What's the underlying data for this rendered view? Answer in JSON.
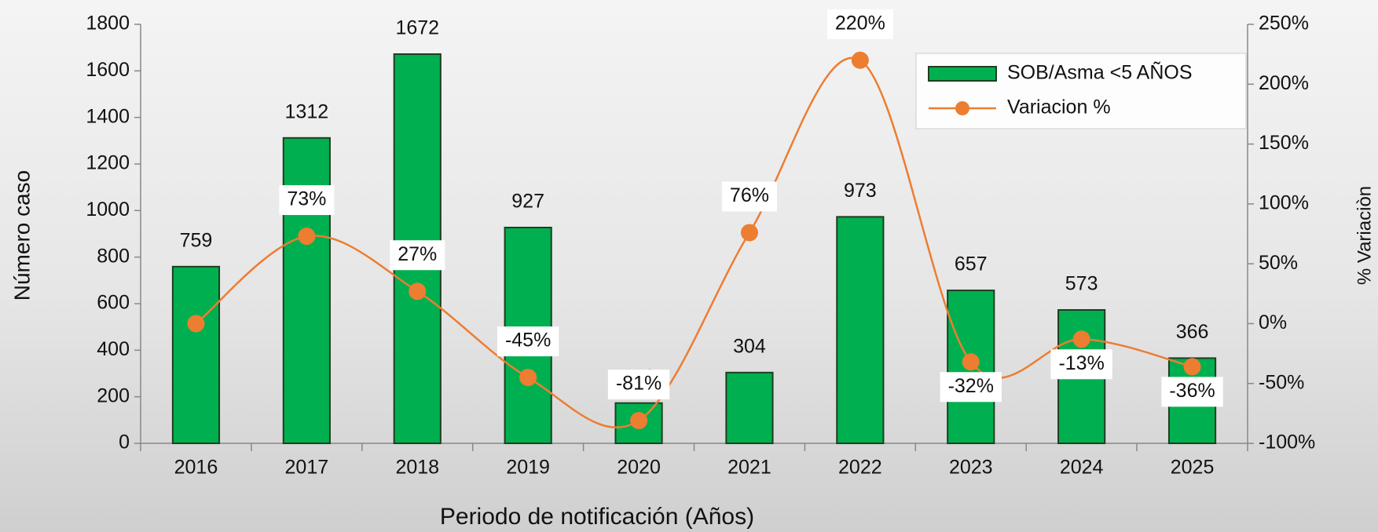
{
  "chart_data": {
    "type": "bar_line",
    "xlabel": "Periodo de notificación (Años)",
    "ylabel": "Número caso",
    "y2label": "% Variaciòn",
    "categories": [
      "2016",
      "2017",
      "2018",
      "2019",
      "2020",
      "2021",
      "2022",
      "2023",
      "2024",
      "2025"
    ],
    "series": [
      {
        "name": "SOB/Asma <5 AÑOS",
        "type": "bar",
        "color": "#00b050",
        "values": [
          759,
          1312,
          1672,
          927,
          173,
          304,
          973,
          657,
          573,
          366
        ]
      },
      {
        "name": "Variacion %",
        "type": "line",
        "axis": "y2",
        "color": "#ed7d31",
        "values": [
          0,
          73,
          27,
          -45,
          -81,
          76,
          220,
          -32,
          -13,
          -36
        ],
        "value_labels": [
          null,
          "73%",
          "27%",
          "-45%",
          "-81%",
          "76%",
          "220%",
          "-32%",
          "-13%",
          "-36%"
        ]
      }
    ],
    "ylim": [
      0,
      1800
    ],
    "yticks": [
      0,
      200,
      400,
      600,
      800,
      1000,
      1200,
      1400,
      1600,
      1800
    ],
    "y2lim": [
      -100,
      250
    ],
    "y2ticks": [
      {
        "value": -100,
        "label": "-100%"
      },
      {
        "value": -50,
        "label": "-50%"
      },
      {
        "value": 0,
        "label": "0%"
      },
      {
        "value": 50,
        "label": "50%"
      },
      {
        "value": 100,
        "label": "100%"
      },
      {
        "value": 150,
        "label": "150%"
      },
      {
        "value": 200,
        "label": "200%"
      },
      {
        "value": 250,
        "label": "250%"
      }
    ],
    "legend": "top-right"
  }
}
